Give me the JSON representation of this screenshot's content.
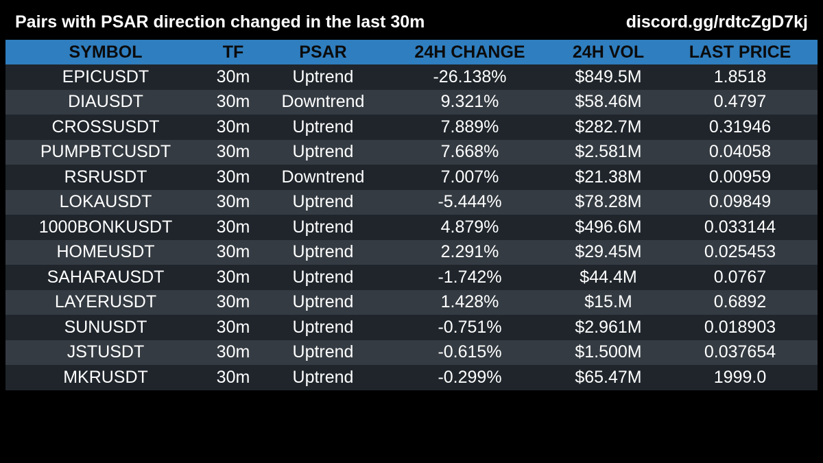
{
  "header": {
    "title": "Pairs with PSAR direction changed in the last 30m",
    "link": "discord.gg/rdtcZgD7kj"
  },
  "table": {
    "columns": [
      "SYMBOL",
      "TF",
      "PSAR",
      "24H CHANGE",
      "24H VOL",
      "LAST PRICE"
    ],
    "rows": [
      [
        "EPICUSDT",
        "30m",
        "Uptrend",
        "-26.138%",
        "$849.5M",
        "1.8518"
      ],
      [
        "DIAUSDT",
        "30m",
        "Downtrend",
        "9.321%",
        "$58.46M",
        "0.4797"
      ],
      [
        "CROSSUSDT",
        "30m",
        "Uptrend",
        "7.889%",
        "$282.7M",
        "0.31946"
      ],
      [
        "PUMPBTCUSDT",
        "30m",
        "Uptrend",
        "7.668%",
        "$2.581M",
        "0.04058"
      ],
      [
        "RSRUSDT",
        "30m",
        "Downtrend",
        "7.007%",
        "$21.38M",
        "0.00959"
      ],
      [
        "LOKAUSDT",
        "30m",
        "Uptrend",
        "-5.444%",
        "$78.28M",
        "0.09849"
      ],
      [
        "1000BONKUSDT",
        "30m",
        "Uptrend",
        "4.879%",
        "$496.6M",
        "0.033144"
      ],
      [
        "HOMEUSDT",
        "30m",
        "Uptrend",
        "2.291%",
        "$29.45M",
        "0.025453"
      ],
      [
        "SAHARAUSDT",
        "30m",
        "Uptrend",
        "-1.742%",
        "$44.4M",
        "0.0767"
      ],
      [
        "LAYERUSDT",
        "30m",
        "Uptrend",
        "1.428%",
        "$15.M",
        "0.6892"
      ],
      [
        "SUNUSDT",
        "30m",
        "Uptrend",
        "-0.751%",
        "$2.961M",
        "0.018903"
      ],
      [
        "JSTUSDT",
        "30m",
        "Uptrend",
        "-0.615%",
        "$1.500M",
        "0.037654"
      ],
      [
        "MKRUSDT",
        "30m",
        "Uptrend",
        "-0.299%",
        "$65.47M",
        "1999.0"
      ]
    ]
  },
  "colors": {
    "background": "#000000",
    "header_row": "#2f7ebf",
    "row_odd": "#1f252b",
    "row_even": "#343b42",
    "text": "#ffffff"
  }
}
